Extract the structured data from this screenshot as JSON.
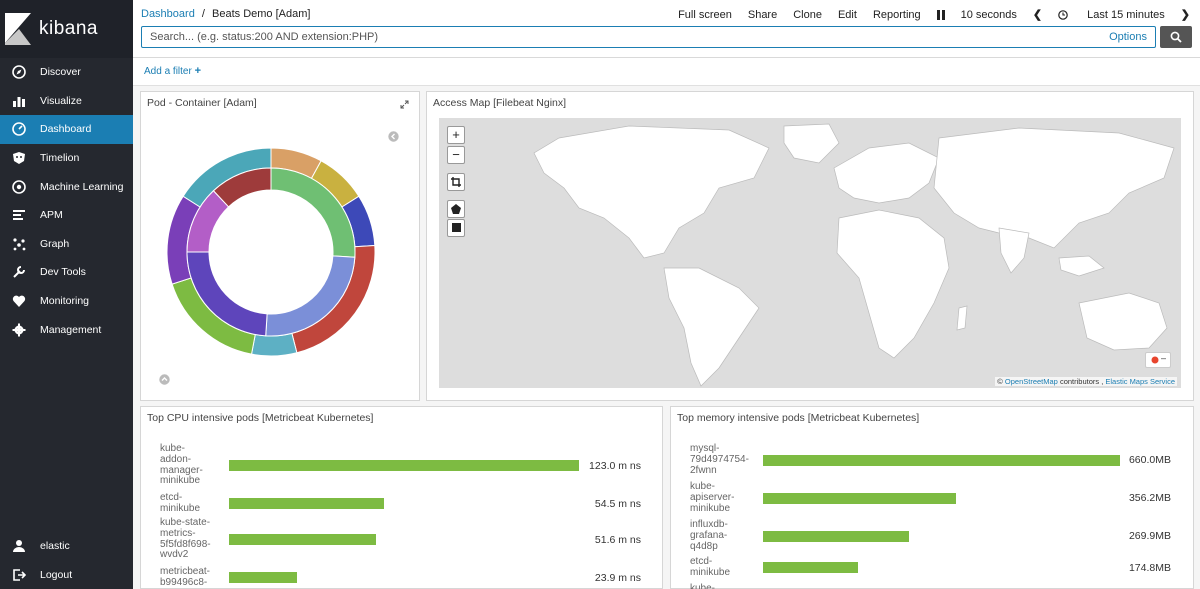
{
  "app": {
    "name": "kibana"
  },
  "sidebar": {
    "items": [
      {
        "label": "Discover",
        "icon": "compass-icon"
      },
      {
        "label": "Visualize",
        "icon": "bar-chart-icon"
      },
      {
        "label": "Dashboard",
        "icon": "dashboard-icon",
        "active": true
      },
      {
        "label": "Timelion",
        "icon": "timelion-icon"
      },
      {
        "label": "Machine Learning",
        "icon": "machine-learning-icon"
      },
      {
        "label": "APM",
        "icon": "apm-icon"
      },
      {
        "label": "Graph",
        "icon": "graph-icon"
      },
      {
        "label": "Dev Tools",
        "icon": "wrench-icon"
      },
      {
        "label": "Monitoring",
        "icon": "heartbeat-icon"
      },
      {
        "label": "Management",
        "icon": "gear-icon"
      }
    ],
    "bottom": [
      {
        "label": "elastic",
        "icon": "user-icon"
      },
      {
        "label": "Logout",
        "icon": "logout-icon"
      }
    ]
  },
  "breadcrumb": {
    "root": "Dashboard",
    "separator": "/",
    "current": "Beats Demo [Adam]"
  },
  "toolbar": {
    "full_screen": "Full screen",
    "share": "Share",
    "clone": "Clone",
    "edit": "Edit",
    "reporting": "Reporting",
    "refresh_interval": "10 seconds",
    "time_range": "Last 15 minutes"
  },
  "search": {
    "placeholder": "Search... (e.g. status:200 AND extension:PHP)",
    "options": "Options"
  },
  "filters": {
    "add_filter": "Add a filter"
  },
  "panels": {
    "pod": {
      "title": "Pod - Container [Adam]"
    },
    "map": {
      "title": "Access Map [Filebeat Nginx]",
      "zoom_in": "+",
      "zoom_out": "−",
      "attribution": {
        "prefix": "©",
        "osm": "OpenStreetMap",
        "contributors": "contributors ,",
        "ems": "Elastic Maps Service"
      },
      "legend": "–"
    },
    "cpu": {
      "title": "Top CPU intensive pods [Metricbeat Kubernetes]",
      "rows": [
        {
          "label": "kube-addon-manager-minikube",
          "lines": [
            "kube-",
            "addon-",
            "manager-",
            "minikube"
          ],
          "value": 123.0,
          "display": "123.0 m ns"
        },
        {
          "label": "etcd-minikube",
          "lines": [
            "etcd-",
            "minikube"
          ],
          "value": 54.5,
          "display": "54.5 m ns"
        },
        {
          "label": "kube-state-metrics-5f5fd8f698-wvdv2",
          "lines": [
            "kube-state-",
            "metrics-",
            "5f5fd8f698-",
            "wvdv2"
          ],
          "value": 51.6,
          "display": "51.6 m ns"
        },
        {
          "label": "metricbeat-b99496c8",
          "lines": [
            "metricbeat-",
            "b99496c8-"
          ],
          "value": 23.9,
          "display": "23.9 m ns"
        }
      ]
    },
    "mem": {
      "title": "Top memory intensive pods [Metricbeat Kubernetes]",
      "rows": [
        {
          "label": "mysql-79d4974754-2fwnn",
          "lines": [
            "mysql-",
            "79d4974754-",
            "2fwnn"
          ],
          "value": 660.0,
          "display": "660.0MB"
        },
        {
          "label": "kube-apiserver-minikube",
          "lines": [
            "kube-",
            "apiserver-",
            "minikube"
          ],
          "value": 356.2,
          "display": "356.2MB"
        },
        {
          "label": "influxdb-grafana-q4d8p",
          "lines": [
            "influxdb-",
            "grafana-",
            "q4d8p"
          ],
          "value": 269.9,
          "display": "269.9MB"
        },
        {
          "label": "etcd-minikube",
          "lines": [
            "etcd-",
            "minikube"
          ],
          "value": 174.8,
          "display": "174.8MB"
        },
        {
          "label": "kube-",
          "lines": [
            "kube-"
          ],
          "value": null,
          "display": ""
        }
      ]
    }
  },
  "chart_data": {
    "type": "pie",
    "donut": true,
    "inner_ring": [
      {
        "value": 26,
        "color": "#6fbf73"
      },
      {
        "value": 25,
        "color": "#7b8fd8"
      },
      {
        "value": 24,
        "color": "#5e45bb"
      },
      {
        "value": 13,
        "color": "#b35ec7"
      },
      {
        "value": 12,
        "color": "#9e3b3b"
      }
    ],
    "outer_ring": [
      {
        "value": 8,
        "color": "#d9a066"
      },
      {
        "value": 8,
        "color": "#c9b140"
      },
      {
        "value": 8,
        "color": "#3d49b8"
      },
      {
        "value": 22,
        "color": "#c0463c"
      },
      {
        "value": 7,
        "color": "#5db0c4"
      },
      {
        "value": 17,
        "color": "#7dbb42"
      },
      {
        "value": 14,
        "color": "#7a3fb8"
      },
      {
        "value": 16,
        "color": "#4ba7b8"
      }
    ]
  },
  "colors": {
    "accent": "#1b7eb3",
    "sidebar": "#25282f",
    "bar": "#7dbb42"
  }
}
